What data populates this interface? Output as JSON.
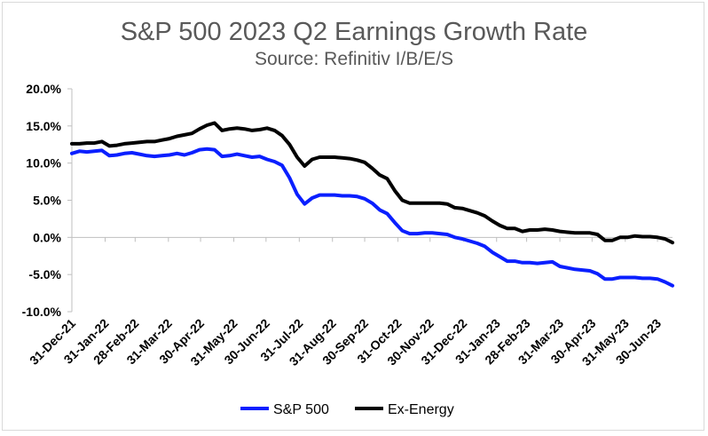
{
  "chart_data": {
    "type": "line",
    "title": "S&P 500 2023 Q2 Earnings Growth Rate",
    "subtitle": "Source: Refinitiv I/B/E/S",
    "xlabel": "",
    "ylabel": "",
    "ylim": [
      -10,
      20
    ],
    "yticks": [
      20,
      15,
      10,
      5,
      0,
      -5,
      -10
    ],
    "ytick_labels": [
      "20.0%",
      "15.0%",
      "10.0%",
      "5.0%",
      "0.0%",
      "-5.0%",
      "-10.0%"
    ],
    "xlim": [
      0,
      80
    ],
    "xticks": [
      0,
      4.43,
      8.43,
      12.86,
      17.14,
      21.57,
      25.86,
      30.29,
      34.71,
      39,
      43.43,
      47.71,
      52.14,
      56.57,
      60.57,
      65,
      69.29,
      73.71,
      78
    ],
    "xtick_labels": [
      "31-Dec-21",
      "31-Jan-22",
      "28-Feb-22",
      "31-Mar-22",
      "30-Apr-22",
      "31-May-22",
      "30-Jun-22",
      "31-Jul-22",
      "31-Aug-22",
      "30-Sep-22",
      "31-Oct-22",
      "30-Nov-22",
      "31-Dec-22",
      "31-Jan-23",
      "28-Feb-23",
      "31-Mar-23",
      "30-Apr-23",
      "31-May-23",
      "30-Jun-23"
    ],
    "legend_position": "bottom",
    "colors": {
      "sp500": "#0a1fff",
      "ex_energy": "#000000",
      "axis": "#bfbfbf"
    },
    "series": [
      {
        "name": "S&P 500",
        "color": "#0a1fff",
        "points": [
          [
            0,
            11.3
          ],
          [
            1,
            11.6
          ],
          [
            2,
            11.5
          ],
          [
            3,
            11.6
          ],
          [
            4,
            11.7
          ],
          [
            5,
            11.0
          ],
          [
            6,
            11.1
          ],
          [
            7,
            11.3
          ],
          [
            8,
            11.4
          ],
          [
            9,
            11.2
          ],
          [
            10,
            11.0
          ],
          [
            11,
            10.9
          ],
          [
            12,
            11.0
          ],
          [
            13,
            11.1
          ],
          [
            14,
            11.3
          ],
          [
            15,
            11.1
          ],
          [
            16,
            11.4
          ],
          [
            17,
            11.8
          ],
          [
            18,
            11.9
          ],
          [
            19,
            11.8
          ],
          [
            20,
            10.9
          ],
          [
            21,
            11.0
          ],
          [
            22,
            11.2
          ],
          [
            23,
            11.0
          ],
          [
            24,
            10.8
          ],
          [
            25,
            10.9
          ],
          [
            26,
            10.5
          ],
          [
            27,
            10.2
          ],
          [
            28,
            9.7
          ],
          [
            29,
            8.0
          ],
          [
            30,
            5.8
          ],
          [
            31,
            4.5
          ],
          [
            32,
            5.3
          ],
          [
            33,
            5.7
          ],
          [
            34,
            5.7
          ],
          [
            35,
            5.7
          ],
          [
            36,
            5.6
          ],
          [
            37,
            5.6
          ],
          [
            38,
            5.5
          ],
          [
            39,
            5.2
          ],
          [
            40,
            4.6
          ],
          [
            41,
            3.7
          ],
          [
            42,
            3.2
          ],
          [
            43,
            2.0
          ],
          [
            44,
            0.9
          ],
          [
            45,
            0.5
          ],
          [
            46,
            0.5
          ],
          [
            47,
            0.6
          ],
          [
            48,
            0.6
          ],
          [
            49,
            0.5
          ],
          [
            50,
            0.4
          ],
          [
            51,
            0.0
          ],
          [
            52,
            -0.2
          ],
          [
            53,
            -0.5
          ],
          [
            54,
            -0.8
          ],
          [
            55,
            -1.2
          ],
          [
            56,
            -2.0
          ],
          [
            57,
            -2.6
          ],
          [
            58,
            -3.2
          ],
          [
            59,
            -3.2
          ],
          [
            60,
            -3.4
          ],
          [
            61,
            -3.4
          ],
          [
            62,
            -3.5
          ],
          [
            63,
            -3.4
          ],
          [
            64,
            -3.3
          ],
          [
            65,
            -3.9
          ],
          [
            66,
            -4.1
          ],
          [
            67,
            -4.3
          ],
          [
            68,
            -4.4
          ],
          [
            69,
            -4.5
          ],
          [
            70,
            -4.9
          ],
          [
            71,
            -5.6
          ],
          [
            72,
            -5.6
          ],
          [
            73,
            -5.4
          ],
          [
            74,
            -5.4
          ],
          [
            75,
            -5.4
          ],
          [
            76,
            -5.5
          ],
          [
            77,
            -5.5
          ],
          [
            78,
            -5.6
          ],
          [
            79,
            -6.0
          ],
          [
            80,
            -6.5
          ]
        ]
      },
      {
        "name": "Ex-Energy",
        "color": "#000000",
        "points": [
          [
            0,
            12.6
          ],
          [
            1,
            12.6
          ],
          [
            2,
            12.7
          ],
          [
            3,
            12.7
          ],
          [
            4,
            12.9
          ],
          [
            5,
            12.3
          ],
          [
            6,
            12.4
          ],
          [
            7,
            12.6
          ],
          [
            8,
            12.7
          ],
          [
            9,
            12.8
          ],
          [
            10,
            12.9
          ],
          [
            11,
            12.9
          ],
          [
            12,
            13.1
          ],
          [
            13,
            13.3
          ],
          [
            14,
            13.6
          ],
          [
            15,
            13.8
          ],
          [
            16,
            14.0
          ],
          [
            17,
            14.6
          ],
          [
            18,
            15.1
          ],
          [
            19,
            15.4
          ],
          [
            20,
            14.4
          ],
          [
            21,
            14.6
          ],
          [
            22,
            14.7
          ],
          [
            23,
            14.6
          ],
          [
            24,
            14.4
          ],
          [
            25,
            14.5
          ],
          [
            26,
            14.7
          ],
          [
            27,
            14.4
          ],
          [
            28,
            13.7
          ],
          [
            29,
            12.5
          ],
          [
            30,
            10.8
          ],
          [
            31,
            9.6
          ],
          [
            32,
            10.5
          ],
          [
            33,
            10.8
          ],
          [
            34,
            10.8
          ],
          [
            35,
            10.8
          ],
          [
            36,
            10.7
          ],
          [
            37,
            10.6
          ],
          [
            38,
            10.4
          ],
          [
            39,
            10.1
          ],
          [
            40,
            9.3
          ],
          [
            41,
            8.4
          ],
          [
            42,
            7.9
          ],
          [
            43,
            6.3
          ],
          [
            44,
            5.0
          ],
          [
            45,
            4.6
          ],
          [
            46,
            4.6
          ],
          [
            47,
            4.6
          ],
          [
            48,
            4.6
          ],
          [
            49,
            4.6
          ],
          [
            50,
            4.5
          ],
          [
            51,
            4.0
          ],
          [
            52,
            3.9
          ],
          [
            53,
            3.6
          ],
          [
            54,
            3.3
          ],
          [
            55,
            2.9
          ],
          [
            56,
            2.2
          ],
          [
            57,
            1.6
          ],
          [
            58,
            1.2
          ],
          [
            59,
            1.2
          ],
          [
            60,
            0.8
          ],
          [
            61,
            1.0
          ],
          [
            62,
            1.0
          ],
          [
            63,
            1.1
          ],
          [
            64,
            1.0
          ],
          [
            65,
            0.8
          ],
          [
            66,
            0.7
          ],
          [
            67,
            0.6
          ],
          [
            68,
            0.6
          ],
          [
            69,
            0.6
          ],
          [
            70,
            0.4
          ],
          [
            71,
            -0.4
          ],
          [
            72,
            -0.4
          ],
          [
            73,
            0.0
          ],
          [
            74,
            0.0
          ],
          [
            75,
            0.2
          ],
          [
            76,
            0.1
          ],
          [
            77,
            0.1
          ],
          [
            78,
            0.0
          ],
          [
            79,
            -0.2
          ],
          [
            80,
            -0.7
          ]
        ]
      }
    ]
  }
}
